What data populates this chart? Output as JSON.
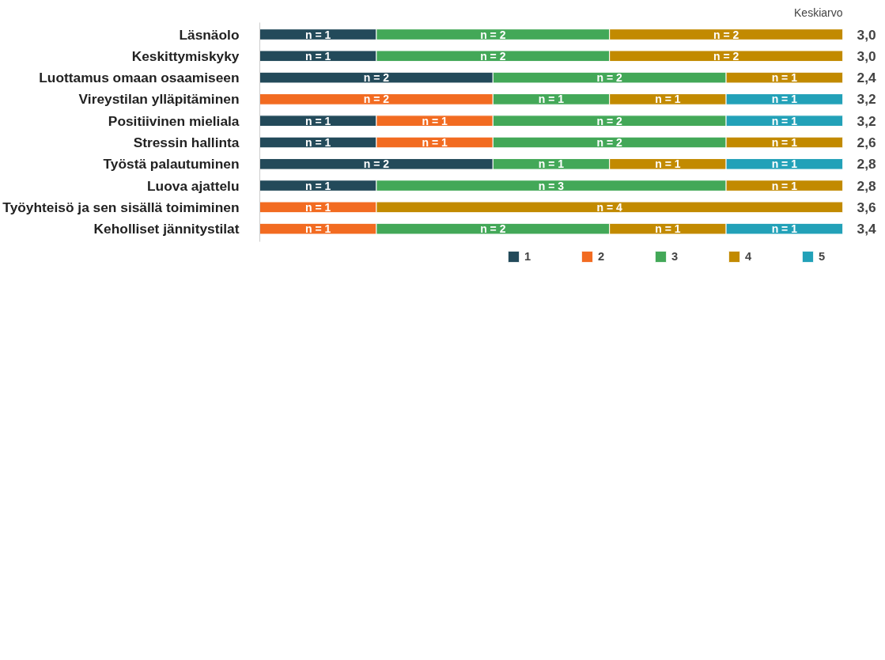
{
  "chart_data": {
    "type": "bar",
    "orientation": "horizontal",
    "stacked": true,
    "categories": [
      "Läsnäolo",
      "Keskittymiskyky",
      "Luottamus omaan osaamiseen",
      "Vireystilan ylläpitäminen",
      "Positiivinen mieliala",
      "Stressin hallinta",
      "Työstä palautuminen",
      "Luova ajattelu",
      "Työyhteisö ja sen sisällä toimiminen",
      "Keholliset jännitystilat"
    ],
    "series": [
      {
        "name": "1",
        "color": "#234a5a",
        "values": [
          1,
          1,
          2,
          null,
          1,
          1,
          2,
          1,
          null,
          null
        ],
        "value_labels": [
          "n = 1",
          "n = 1",
          "n = 2",
          null,
          "n = 1",
          "n = 1",
          "n = 2",
          "n = 1",
          null,
          null
        ]
      },
      {
        "name": "2",
        "color": "#f26b21",
        "values": [
          null,
          null,
          null,
          2,
          1,
          1,
          null,
          null,
          1,
          1
        ],
        "value_labels": [
          null,
          null,
          null,
          "n = 2",
          "n = 1",
          "n = 1",
          null,
          null,
          "n = 1",
          "n = 1"
        ]
      },
      {
        "name": "3",
        "color": "#43a858",
        "values": [
          2,
          2,
          2,
          1,
          2,
          2,
          1,
          3,
          null,
          2
        ],
        "value_labels": [
          "n = 2",
          "n = 2",
          "n = 2",
          "n = 1",
          "n = 2",
          "n = 2",
          "n = 1",
          "n = 3",
          null,
          "n = 2"
        ]
      },
      {
        "name": "4",
        "color": "#c28a00",
        "values": [
          2,
          2,
          1,
          1,
          null,
          1,
          1,
          1,
          4,
          1
        ],
        "value_labels": [
          "n = 2",
          "n = 2",
          "n = 1",
          "n = 1",
          null,
          "n = 1",
          "n = 1",
          "n = 1",
          "n = 4",
          "n = 1"
        ]
      },
      {
        "name": "5",
        "color": "#22a1b8",
        "values": [
          null,
          null,
          null,
          1,
          1,
          null,
          1,
          null,
          null,
          1
        ],
        "value_labels": [
          null,
          null,
          null,
          "n = 1",
          "n = 1",
          null,
          "n = 1",
          null,
          null,
          "n = 1"
        ]
      }
    ],
    "xlim": [
      0,
      5
    ],
    "tick_labels": "y",
    "grid": false,
    "legend": "bottom",
    "annotations": [
      "Keskiarvo",
      "3,0",
      "3,0",
      "2,4",
      "3,2",
      "3,2",
      "2,6",
      "2,8",
      "2,8",
      "3,6",
      "3,4"
    ]
  }
}
